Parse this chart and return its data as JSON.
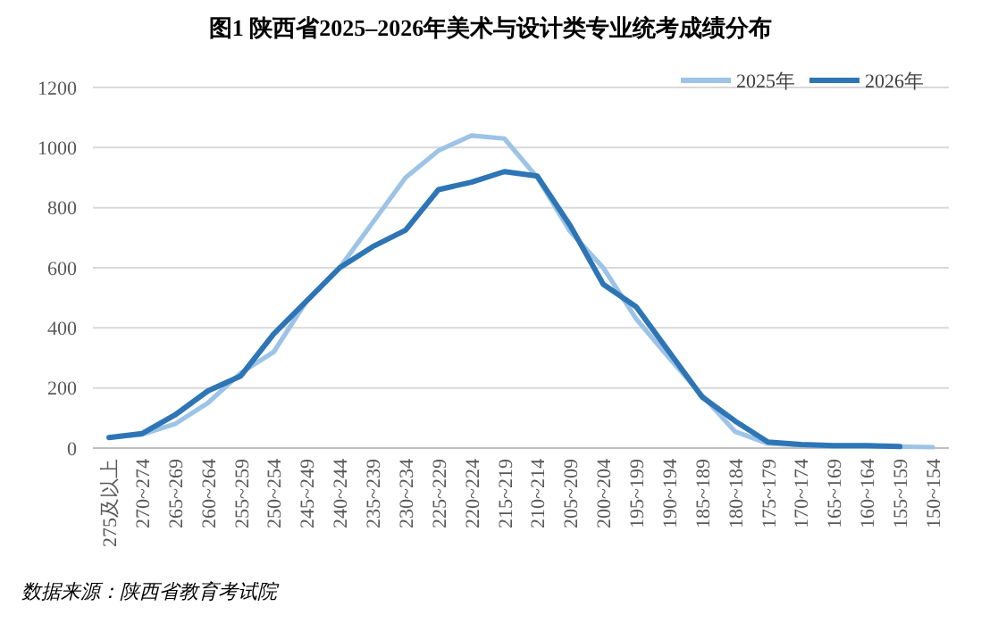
{
  "chart_data": {
    "type": "line",
    "title": "图1  陕西省2025–2026年美术与设计类专业统考成绩分布",
    "categories": [
      "275及以上",
      "270~274",
      "265~269",
      "260~264",
      "255~259",
      "250~254",
      "245~249",
      "240~244",
      "235~239",
      "230~234",
      "225~229",
      "220~224",
      "215~219",
      "210~214",
      "205~209",
      "200~204",
      "195~199",
      "190~194",
      "185~189",
      "180~184",
      "175~179",
      "170~174",
      "165~169",
      "160~164",
      "155~159",
      "150~154"
    ],
    "series": [
      {
        "name": "2025年",
        "color": "#9dc3e6",
        "values": [
          35,
          45,
          80,
          150,
          250,
          320,
          490,
          600,
          750,
          900,
          990,
          1040,
          1030,
          900,
          720,
          600,
          430,
          300,
          175,
          55,
          15,
          10,
          5,
          5,
          5,
          3
        ]
      },
      {
        "name": "2026年",
        "color": "#2e75b6",
        "values": [
          35,
          48,
          110,
          190,
          240,
          380,
          490,
          600,
          670,
          725,
          860,
          885,
          920,
          905,
          740,
          545,
          470,
          320,
          170,
          90,
          20,
          12,
          8,
          8,
          5,
          null
        ]
      }
    ],
    "ylim": [
      0,
      1200
    ],
    "yticks": [
      0,
      200,
      400,
      600,
      800,
      1000,
      1200
    ],
    "grid": "y",
    "legend": "top right",
    "marker": "none",
    "line_style": "solid",
    "annotations": [
      "数据来源：陕西省教育考试院"
    ]
  }
}
